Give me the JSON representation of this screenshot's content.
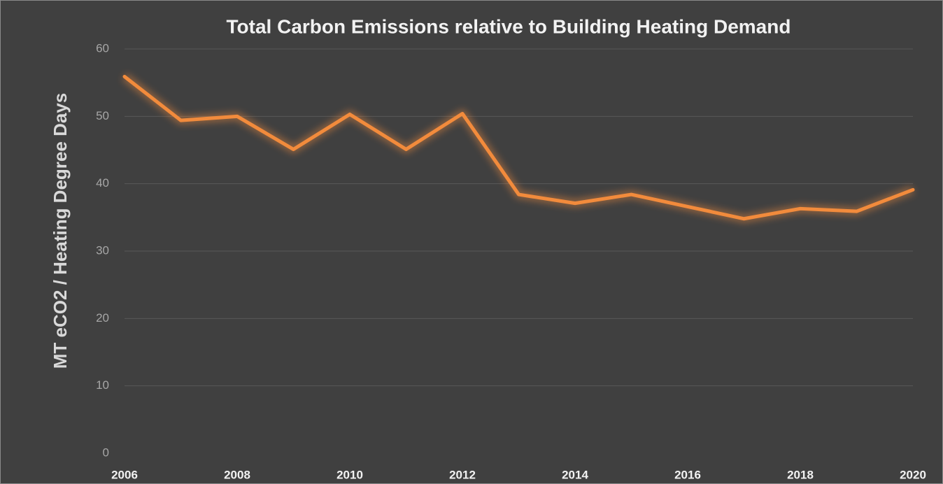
{
  "chart_data": {
    "type": "line",
    "title": "Total Carbon Emissions relative to Building Heating Demand",
    "y_label": "MT eCO2 / Heating Degree Days",
    "x": [
      2006,
      2007,
      2008,
      2009,
      2010,
      2011,
      2012,
      2013,
      2014,
      2015,
      2016,
      2017,
      2018,
      2019,
      2020
    ],
    "series": [
      {
        "color": "#f28b3c",
        "values": [
          55.9,
          49.4,
          50.0,
          45.1,
          50.3,
          45.1,
          50.4,
          38.4,
          37.1,
          38.4,
          36.6,
          34.8,
          36.3,
          35.9,
          39.1
        ]
      }
    ],
    "xlim": [
      2006,
      2020
    ],
    "xticks": [
      2006,
      2008,
      2010,
      2012,
      2014,
      2016,
      2018,
      2020
    ],
    "ylim": [
      0,
      60
    ],
    "yticks": [
      0,
      10,
      20,
      30,
      40,
      50,
      60
    ],
    "grid": true
  }
}
